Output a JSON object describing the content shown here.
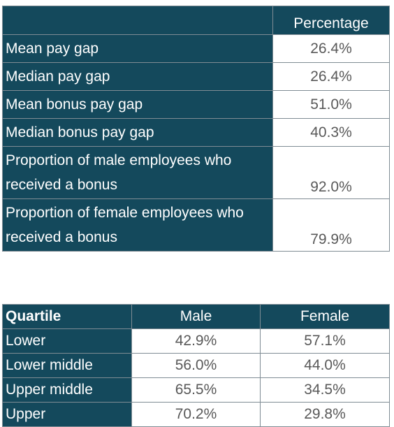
{
  "pay_gap_table": {
    "header": "Percentage",
    "rows": [
      {
        "label": "Mean pay gap",
        "value": "26.4%"
      },
      {
        "label": "Median pay gap",
        "value": "26.4%"
      },
      {
        "label": "Mean bonus pay gap",
        "value": "51.0%"
      },
      {
        "label": "Median bonus pay gap",
        "value": "40.3%"
      },
      {
        "label": "Proportion of male employees who received a bonus",
        "value": "92.0%"
      },
      {
        "label": "Proportion of female employees who received a bonus",
        "value": "79.9%"
      }
    ]
  },
  "quartile_table": {
    "headers": [
      "Quartile",
      "Male",
      "Female"
    ],
    "rows": [
      {
        "quartile": "Lower",
        "male": "42.9%",
        "female": "57.1%"
      },
      {
        "quartile": "Lower middle",
        "male": "56.0%",
        "female": "44.0%"
      },
      {
        "quartile": "Upper middle",
        "male": "65.5%",
        "female": "34.5%"
      },
      {
        "quartile": "Upper",
        "male": "70.2%",
        "female": "29.8%"
      }
    ]
  },
  "colors": {
    "header_fill": "#14495c",
    "header_text": "#ffffff",
    "value_text": "#595959",
    "border": "#7f8c94"
  }
}
